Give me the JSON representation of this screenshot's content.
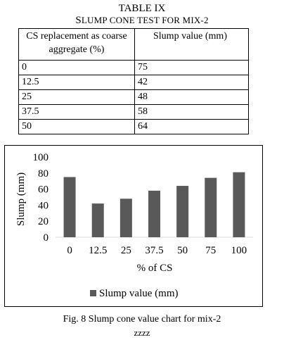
{
  "table": {
    "title": "TABLE IX",
    "subtitle_first": "S",
    "subtitle_rest": "LUMP CONE TEST FOR MIX-2",
    "headers": [
      "CS replacement as coarse aggregate (%)",
      "Slump value (mm)"
    ],
    "rows": [
      [
        "0",
        "75"
      ],
      [
        "12.5",
        "42"
      ],
      [
        "25",
        "48"
      ],
      [
        "37.5",
        "58"
      ],
      [
        "50",
        "64"
      ]
    ]
  },
  "chart_data": {
    "type": "bar",
    "title": "",
    "xlabel": "% of CS",
    "ylabel": "Slump (mm)",
    "categories": [
      "0",
      "12.5",
      "25",
      "37.5",
      "50",
      "75",
      "100"
    ],
    "series": [
      {
        "name": "Slump value (mm)",
        "values": [
          75,
          42,
          48,
          58,
          64,
          74,
          81
        ]
      }
    ],
    "ylim": [
      0,
      100
    ],
    "yticks": [
      "0",
      "20",
      "40",
      "60",
      "80",
      "100"
    ],
    "grid": false,
    "legend": "bottom",
    "bar_color": "#595959"
  },
  "caption": "Fig. 8 Slump cone value chart for mix-2",
  "caption_extra": "zzzz"
}
